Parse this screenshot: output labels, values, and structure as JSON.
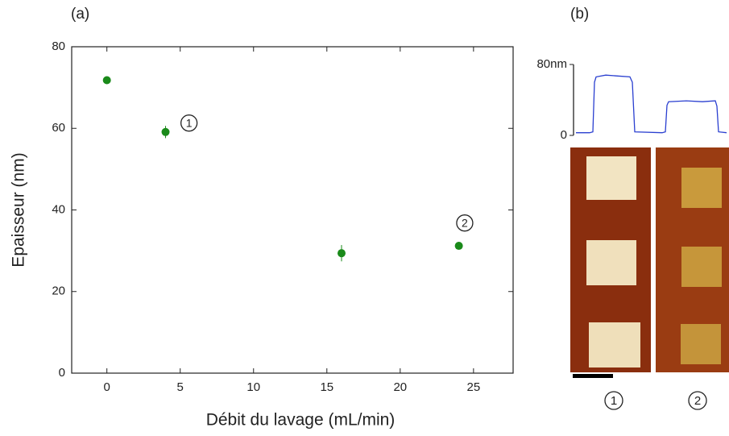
{
  "chart_data": [
    {
      "type": "scatter",
      "panel_label": "(a)",
      "x_label": "Débit du lavage (mL/min)",
      "y_label": "Epaisseur (nm)",
      "x": [
        0,
        4,
        16,
        24
      ],
      "values": [
        71.8,
        59.1,
        29.4,
        31.2
      ],
      "errors": [
        0.6,
        1.5,
        2.0,
        0.6
      ],
      "color": "#1a8a1a",
      "xlim": [
        -2.4,
        27.7
      ],
      "ylim": [
        0,
        80
      ],
      "xticks": [
        0,
        5,
        10,
        15,
        20,
        25
      ],
      "yticks": [
        0,
        20,
        40,
        60,
        80
      ],
      "annotations": [
        {
          "text": "1",
          "x": 5.6,
          "y": 61.3
        },
        {
          "text": "2",
          "x": 24.4,
          "y": 36.8
        }
      ]
    },
    {
      "type": "line",
      "panel_label": "(b)",
      "x": [
        3,
        20,
        24,
        26,
        28,
        40,
        55,
        70,
        73,
        76,
        110,
        114,
        116,
        118,
        140,
        160,
        176,
        178,
        180,
        190
      ],
      "values": [
        3,
        3,
        4,
        60,
        66,
        68,
        67,
        66,
        60,
        4,
        3,
        4,
        34,
        38,
        39,
        38,
        39,
        33,
        4,
        3
      ],
      "color": "#2a3fd0",
      "xlim": [
        0,
        192
      ],
      "ylim": [
        0,
        80
      ],
      "yticks": [
        0,
        {
          "value": 80,
          "label": "80nm"
        }
      ],
      "image_labels": [
        "1",
        "2"
      ]
    }
  ]
}
